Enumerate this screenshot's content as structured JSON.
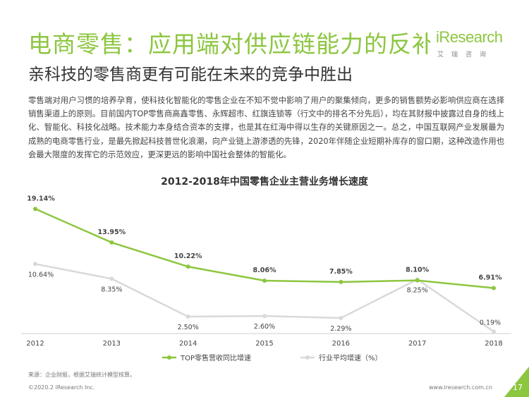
{
  "header": {
    "title": "电商零售：应用端对供应链能力的反补",
    "subtitle": "亲科技的零售商更有可能在未来的竞争中胜出",
    "logo_text": "iResearch",
    "logo_cn": "艾瑞咨询"
  },
  "body_text": "零售端对用户习惯的培养孕育，使科技化智能化的零售企业在不知不觉中影响了用户的聚集倾向，更多的销售额势必影响供应商在选择销售渠道上的原则。目前国内TOP零售商高鑫零售、永辉超市、红旗连锁等（行文中的排名不分先后），均在其财报中披露过自身的线上化、智能化、科技化战略。技术能力本身结合资本的支撑，也是其在红海中得以生存的关键原因之一。总之，中国互联网产业发展最为成熟的电商零售行业，是最先掀起科技普世化浪潮，向产业链上游渗透的先锋，2020年伴随企业短期补库存的窗口期，这种改造作用也会最大限度的发挥它的示范效应，更深更远的影响中国社会整体的智能化。",
  "chart_data": {
    "type": "line",
    "title": "2012-2018年中国零售企业主营业务增长速度",
    "x": [
      "2012",
      "2013",
      "2014",
      "2015",
      "2016",
      "2017",
      "2018"
    ],
    "ylim": [
      0,
      22
    ],
    "grid": false,
    "legend_position": "bottom",
    "series": [
      {
        "name": "TOP零售营收同比增速",
        "values": [
          19.14,
          13.95,
          10.22,
          8.06,
          7.85,
          8.1,
          6.91
        ],
        "labels": [
          "19.14%",
          "13.95%",
          "10.22%",
          "8.06%",
          "7.85%",
          "8.10%",
          "6.91%"
        ],
        "color": "#8cc63f"
      },
      {
        "name": "行业平均增速（%）",
        "values": [
          10.64,
          8.35,
          2.5,
          2.6,
          2.29,
          8.25,
          0.19
        ],
        "labels": [
          "10.64%",
          "8.35%",
          "2.50%",
          "2.60%",
          "2.29%",
          "8.25%",
          "0.19%"
        ],
        "color": "#d9d9d9"
      }
    ]
  },
  "footer": {
    "source": "来源：企业财报，根据艾瑞统计模型核算。",
    "copyright": "©2020.2 iResearch Inc.",
    "website": "www.iresearch.com.cn",
    "page_number": "17"
  },
  "colors": {
    "accent": "#8cc63f",
    "secondary": "#d9d9d9"
  }
}
